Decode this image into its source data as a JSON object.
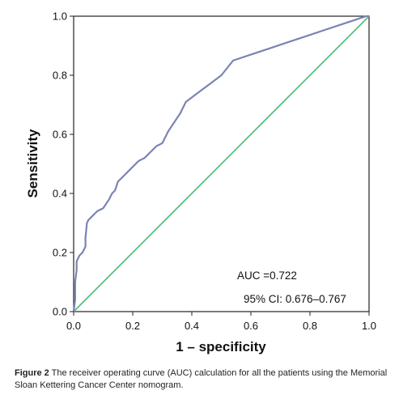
{
  "chart_data": {
    "type": "line",
    "xlabel": "1 – specificity",
    "ylabel": "Sensitivity",
    "xlim": [
      0,
      1
    ],
    "ylim": [
      0,
      1
    ],
    "x_ticks": [
      "0.0",
      "0.2",
      "0.4",
      "0.6",
      "0.8",
      "1.0"
    ],
    "y_ticks": [
      "0.0",
      "0.2",
      "0.4",
      "0.6",
      "0.8",
      "1.0"
    ],
    "grid": false,
    "annotations": [
      "AUC =0.722",
      "95% CI: 0.676–0.767"
    ],
    "series": [
      {
        "color": "#7b83b5",
        "x": [
          0.0,
          0.005,
          0.005,
          0.01,
          0.01,
          0.015,
          0.02,
          0.03,
          0.035,
          0.04,
          0.04,
          0.045,
          0.05,
          0.06,
          0.08,
          0.1,
          0.12,
          0.13,
          0.14,
          0.15,
          0.17,
          0.19,
          0.2,
          0.22,
          0.24,
          0.26,
          0.28,
          0.3,
          0.32,
          0.34,
          0.36,
          0.38,
          0.42,
          0.46,
          0.5,
          0.54,
          0.6,
          0.66,
          0.72,
          0.78,
          0.84,
          0.9,
          0.96,
          0.99,
          1.0
        ],
        "y": [
          0.0,
          0.04,
          0.1,
          0.14,
          0.17,
          0.18,
          0.19,
          0.2,
          0.21,
          0.22,
          0.25,
          0.3,
          0.31,
          0.32,
          0.34,
          0.35,
          0.38,
          0.4,
          0.41,
          0.44,
          0.46,
          0.48,
          0.49,
          0.51,
          0.52,
          0.54,
          0.56,
          0.57,
          0.61,
          0.64,
          0.67,
          0.71,
          0.74,
          0.77,
          0.8,
          0.85,
          0.87,
          0.89,
          0.91,
          0.93,
          0.95,
          0.97,
          0.99,
          1.0,
          1.0
        ]
      },
      {
        "color": "#5cbf7a",
        "x": [
          0.0,
          1.0
        ],
        "y": [
          0.0,
          1.0
        ]
      }
    ]
  },
  "caption": {
    "label": "Figure 2",
    "text": " The receiver operating curve (AUC) calculation for all the patients using the Memorial Sloan Kettering Cancer Center nomogram."
  }
}
